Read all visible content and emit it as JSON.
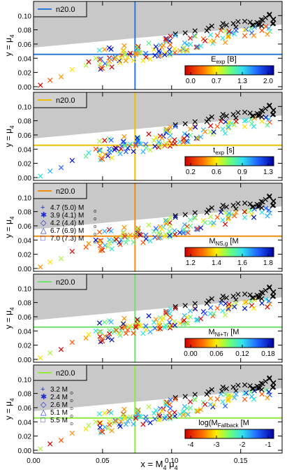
{
  "figure": {
    "xlabel_main": "x = M",
    "xlabel_sub1": "4",
    "xlabel_mid": " μ",
    "xlabel_sub2": "4",
    "ylabel_main": "y = μ",
    "ylabel_sub": "4",
    "xticks": [
      "0.00",
      "0.05",
      "0.10",
      "0.15"
    ],
    "yticks": [
      "0.00",
      "0.02",
      "0.04",
      "0.06",
      "0.08",
      "0.10"
    ],
    "xlim": [
      0.0,
      0.18
    ],
    "ylim": [
      -0.004,
      0.12
    ],
    "separation_line": {
      "k1": 0.18,
      "k2": 0.055,
      "comment": "y = k1*x + k2 boundary; shaded region above"
    },
    "crosshair": {
      "x": 0.0735,
      "y": 0.0455
    }
  },
  "chart_data": [
    {
      "type": "scatter",
      "legend": "n20.0",
      "legend_color": "#2a78d8",
      "colorbar": {
        "label_main": "E",
        "label_sub": "exp",
        "label_unit": " [B]",
        "ticks": [
          "0.0",
          "0.7",
          "1.3",
          "2.0"
        ]
      },
      "points_hue_seed": 1
    },
    {
      "type": "scatter",
      "legend": "n20.0",
      "legend_color": "#f0c000",
      "colorbar": {
        "label_main": "t",
        "label_sub": "exp",
        "label_unit": " [s]",
        "ticks": [
          "0.2",
          "0.6",
          "0.9",
          "1.3"
        ]
      },
      "points_hue_seed": 2
    },
    {
      "type": "scatter",
      "legend": "n20.0",
      "legend_color": "#f08c10",
      "colorbar": {
        "label_main": "M",
        "label_sub": "NS,g",
        "label_unit": " [M",
        "ticks": [
          "1.2",
          "1.4",
          "1.6",
          "1.8"
        ]
      },
      "markers_legend": [
        "4.7 (5.0) M",
        "3.9 (4.1) M",
        "4.2 (4.4) M",
        "6.7 (6.9) M",
        "7.0 (7.3) M"
      ],
      "points_hue_seed": 3
    },
    {
      "type": "scatter",
      "legend": "n20.0",
      "legend_color": "#70e070",
      "colorbar": {
        "label_main": "M",
        "label_sub": "Ni+Tr",
        "label_unit": " [M",
        "ticks": [
          "0.00",
          "0.06",
          "0.12",
          "0.18"
        ]
      },
      "points_hue_seed": 4
    },
    {
      "type": "scatter",
      "legend": "n20.0",
      "legend_color": "#90e840",
      "colorbar": {
        "label_main": "log(M",
        "label_sub": "Fallback",
        "label_unit": " [M",
        "ticks": [
          "-4",
          "-3",
          "-2",
          "-1"
        ]
      },
      "markers_legend": [
        "3.2 M",
        "2.4 M",
        "2.6 M",
        "5.1 M",
        "5.5 M"
      ],
      "points_hue_seed": 5
    }
  ]
}
